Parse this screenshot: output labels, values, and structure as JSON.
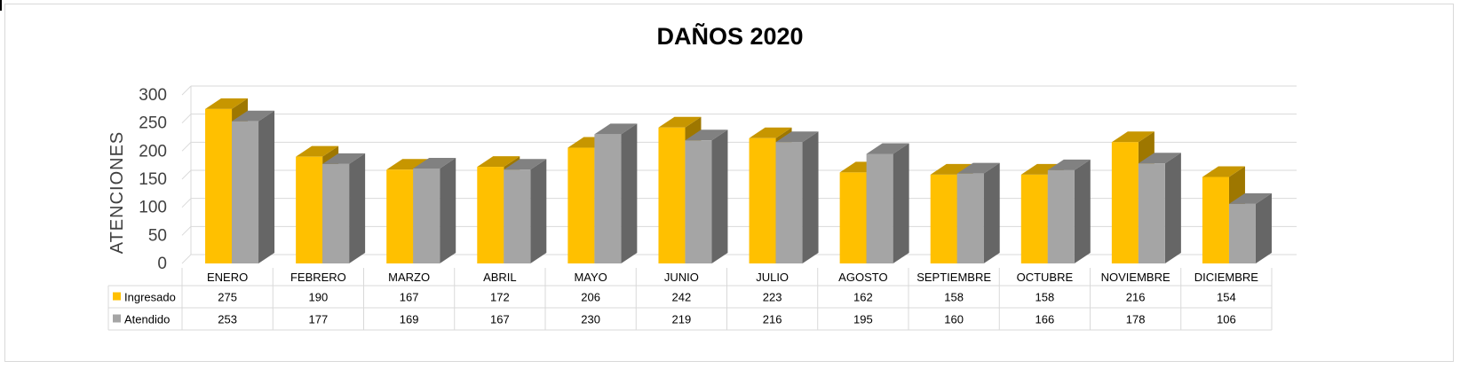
{
  "chart_data": {
    "type": "bar",
    "title": "DAÑOS 2020",
    "xlabel": "",
    "ylabel": "ATENCIONES",
    "ylim": [
      0,
      300
    ],
    "yticks": [
      0,
      50,
      100,
      150,
      200,
      250,
      300
    ],
    "grid": true,
    "three_d": true,
    "legend": "data-table",
    "categories": [
      "ENERO",
      "FEBRERO",
      "MARZO",
      "ABRIL",
      "MAYO",
      "JUNIO",
      "JULIO",
      "AGOSTO",
      "SEPTIEMBRE",
      "OCTUBRE",
      "NOVIEMBRE",
      "DICIEMBRE"
    ],
    "series": [
      {
        "name": "Ingresado",
        "color": "#ffc000",
        "values": [
          275,
          190,
          167,
          172,
          206,
          242,
          223,
          162,
          158,
          158,
          216,
          154
        ]
      },
      {
        "name": "Atendido",
        "color": "#a5a5a5",
        "values": [
          253,
          177,
          169,
          167,
          230,
          219,
          216,
          195,
          160,
          166,
          178,
          106
        ]
      }
    ]
  }
}
